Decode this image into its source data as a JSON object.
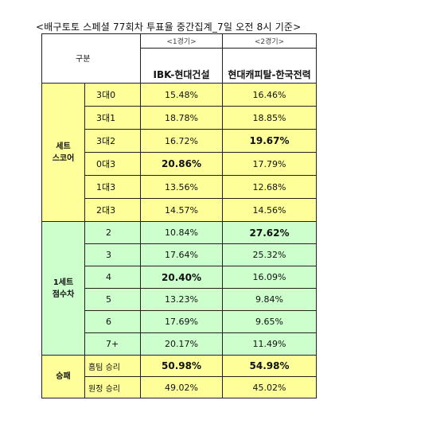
{
  "title": "<배구토토 스페셜 77회차 투표율 중간집계_7일 오전 8시 기준>",
  "header": {
    "category_label": "구분",
    "match1_round": "<1경기>",
    "match2_round": "<2경기>",
    "match1_name": "IBK-현대건설",
    "match2_name": "현대캐피탈-한국전력"
  },
  "groups": {
    "set_score": "세트\n스코어",
    "point_diff": "1세트\n점수차",
    "win_loss": "승패"
  },
  "set_score_rows": [
    {
      "label": "3대0",
      "m1": "15.48%",
      "m2": "16.46%",
      "m1_bold": false,
      "m2_bold": false
    },
    {
      "label": "3대1",
      "m1": "18.78%",
      "m2": "18.85%",
      "m1_bold": false,
      "m2_bold": false
    },
    {
      "label": "3대2",
      "m1": "16.72%",
      "m2": "19.67%",
      "m1_bold": false,
      "m2_bold": true
    },
    {
      "label": "0대3",
      "m1": "20.86%",
      "m2": "17.79%",
      "m1_bold": true,
      "m2_bold": false
    },
    {
      "label": "1대3",
      "m1": "13.56%",
      "m2": "12.68%",
      "m1_bold": false,
      "m2_bold": false
    },
    {
      "label": "2대3",
      "m1": "14.57%",
      "m2": "14.56%",
      "m1_bold": false,
      "m2_bold": false
    }
  ],
  "point_diff_rows": [
    {
      "label": "2",
      "m1": "10.84%",
      "m2": "27.62%",
      "m1_bold": false,
      "m2_bold": true
    },
    {
      "label": "3",
      "m1": "17.64%",
      "m2": "25.32%",
      "m1_bold": false,
      "m2_bold": false
    },
    {
      "label": "4",
      "m1": "20.40%",
      "m2": "16.09%",
      "m1_bold": true,
      "m2_bold": false
    },
    {
      "label": "5",
      "m1": "13.23%",
      "m2": "9.84%",
      "m1_bold": false,
      "m2_bold": false
    },
    {
      "label": "6",
      "m1": "17.69%",
      "m2": "9.65%",
      "m1_bold": false,
      "m2_bold": false
    },
    {
      "label": "7+",
      "m1": "20.17%",
      "m2": "11.49%",
      "m1_bold": false,
      "m2_bold": false
    }
  ],
  "win_loss_rows": [
    {
      "label": "홈팀 승리",
      "m1": "50.98%",
      "m2": "54.98%",
      "m1_bold": true,
      "m2_bold": true
    },
    {
      "label": "원정 승리",
      "m1": "49.02%",
      "m2": "45.02%",
      "m1_bold": false,
      "m2_bold": false
    }
  ],
  "colors": {
    "set_score_bg": "#ffff99",
    "point_diff_bg": "#ccffcc",
    "win_loss_bg": "#ffff99"
  }
}
